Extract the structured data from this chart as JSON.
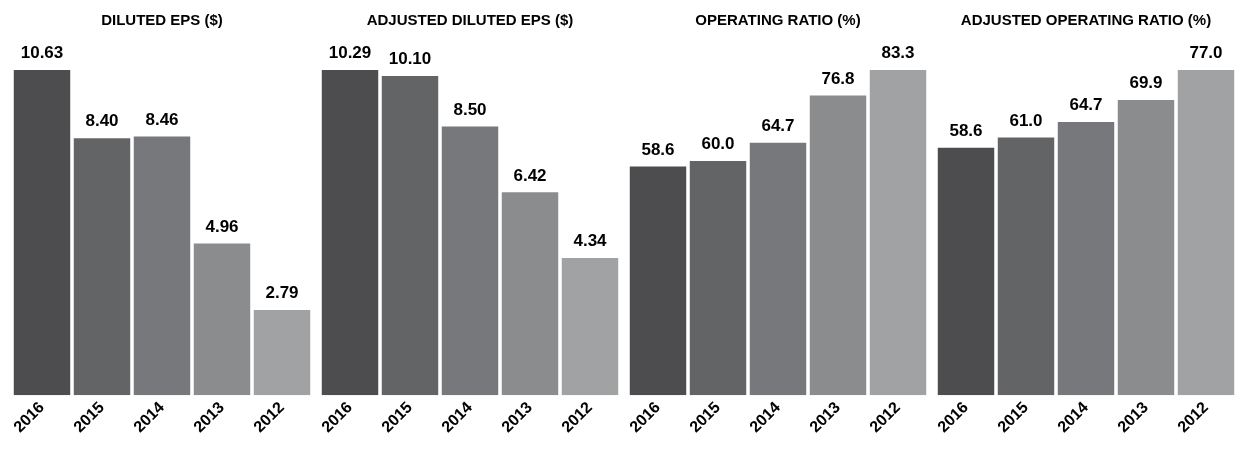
{
  "chart_data": [
    {
      "type": "bar",
      "title": "DILUTED EPS ($)",
      "categories": [
        "2016",
        "2015",
        "2014",
        "2013",
        "2012"
      ],
      "values": [
        10.63,
        8.4,
        8.46,
        4.96,
        2.79
      ],
      "value_labels": [
        "10.63",
        "8.40",
        "8.46",
        "4.96",
        "2.79"
      ],
      "colors": [
        "#4d4d4f",
        "#636466",
        "#77787b",
        "#8b8c8e",
        "#a1a2a4"
      ],
      "grid": false,
      "legend": false
    },
    {
      "type": "bar",
      "title": "ADJUSTED DILUTED EPS ($)",
      "categories": [
        "2016",
        "2015",
        "2014",
        "2013",
        "2012"
      ],
      "values": [
        10.29,
        10.1,
        8.5,
        6.42,
        4.34
      ],
      "value_labels": [
        "10.29",
        "10.10",
        "8.50",
        "6.42",
        "4.34"
      ],
      "colors": [
        "#4d4d4f",
        "#636466",
        "#77787b",
        "#8b8c8e",
        "#a1a2a4"
      ],
      "grid": false,
      "legend": false
    },
    {
      "type": "bar",
      "title": "OPERATING RATIO (%)",
      "categories": [
        "2016",
        "2015",
        "2014",
        "2013",
        "2012"
      ],
      "values": [
        58.6,
        60.0,
        64.7,
        76.8,
        83.3
      ],
      "value_labels": [
        "58.6",
        "60.0",
        "64.7",
        "76.8",
        "83.3"
      ],
      "colors": [
        "#4d4d4f",
        "#636466",
        "#77787b",
        "#8b8c8e",
        "#a1a2a4"
      ],
      "grid": false,
      "legend": false
    },
    {
      "type": "bar",
      "title": "ADJUSTED OPERATING RATIO (%)",
      "categories": [
        "2016",
        "2015",
        "2014",
        "2013",
        "2012"
      ],
      "values": [
        58.6,
        61.0,
        64.7,
        69.9,
        77.0
      ],
      "value_labels": [
        "58.6",
        "61.0",
        "64.7",
        "69.9",
        "77.0"
      ],
      "colors": [
        "#4d4d4f",
        "#636466",
        "#77787b",
        "#8b8c8e",
        "#a1a2a4"
      ],
      "grid": false,
      "legend": false
    }
  ]
}
